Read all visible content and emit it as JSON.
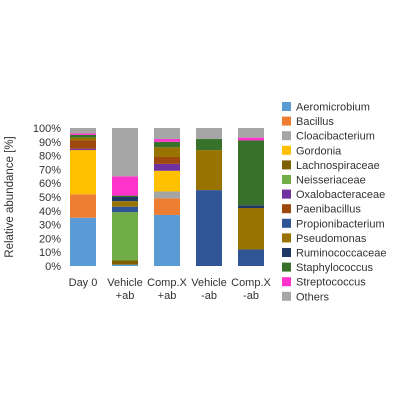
{
  "chart_data": {
    "type": "bar",
    "stacked": true,
    "ylabel": "Relative abundance [%]",
    "ylim": [
      0,
      100
    ],
    "yticks": [
      0,
      10,
      20,
      30,
      40,
      50,
      60,
      70,
      80,
      90,
      100
    ],
    "ytick_suffix": "%",
    "grid": false,
    "legend": "right",
    "categories": [
      [
        "Day 0"
      ],
      [
        "Vehicle",
        "+ab"
      ],
      [
        "Comp.X",
        "+ab"
      ],
      [
        "Vehicle",
        "-ab"
      ],
      [
        "Comp.X",
        "-ab"
      ]
    ],
    "series": [
      {
        "name": "Aeromicrobium",
        "color": "#5B9BD5",
        "values": [
          35,
          1,
          37,
          0,
          0
        ]
      },
      {
        "name": "Bacillus",
        "color": "#ED7D31",
        "values": [
          17,
          0,
          12,
          0,
          0
        ]
      },
      {
        "name": "Cloacibacterium",
        "color": "#A5A5A5",
        "values": [
          0,
          0,
          5,
          0,
          0
        ]
      },
      {
        "name": "Gordonia",
        "color": "#FFC000",
        "values": [
          32,
          0,
          15,
          0,
          0
        ]
      },
      {
        "name": "Lachnospiraceae",
        "color": "#7F6000",
        "values": [
          0,
          3,
          0,
          0,
          0
        ]
      },
      {
        "name": "Neisseriaceae",
        "color": "#70AD47",
        "values": [
          0,
          35,
          0,
          0,
          0
        ]
      },
      {
        "name": "Oxalobacteraceae",
        "color": "#7030A0",
        "values": [
          1,
          0,
          5,
          0,
          0
        ]
      },
      {
        "name": "Paenibacillus",
        "color": "#9E480E",
        "values": [
          6,
          0,
          5,
          0,
          0
        ]
      },
      {
        "name": "Propionibacterium",
        "color": "#2F5597",
        "values": [
          0,
          4,
          0,
          55,
          12
        ]
      },
      {
        "name": "Pseudomonas",
        "color": "#997300",
        "values": [
          2,
          4,
          7,
          29,
          30
        ]
      },
      {
        "name": "Ruminococcaceae",
        "color": "#203864",
        "values": [
          0,
          3,
          0,
          0,
          2
        ]
      },
      {
        "name": "Staphylococcus",
        "color": "#38712A",
        "values": [
          2,
          1,
          4,
          8,
          47
        ]
      },
      {
        "name": "Streptococcus",
        "color": "#FF33CC",
        "values": [
          1,
          14,
          2,
          0,
          2
        ]
      },
      {
        "name": "Others",
        "color": "#A6A6A6",
        "values": [
          4,
          35,
          8,
          8,
          7
        ]
      }
    ]
  }
}
